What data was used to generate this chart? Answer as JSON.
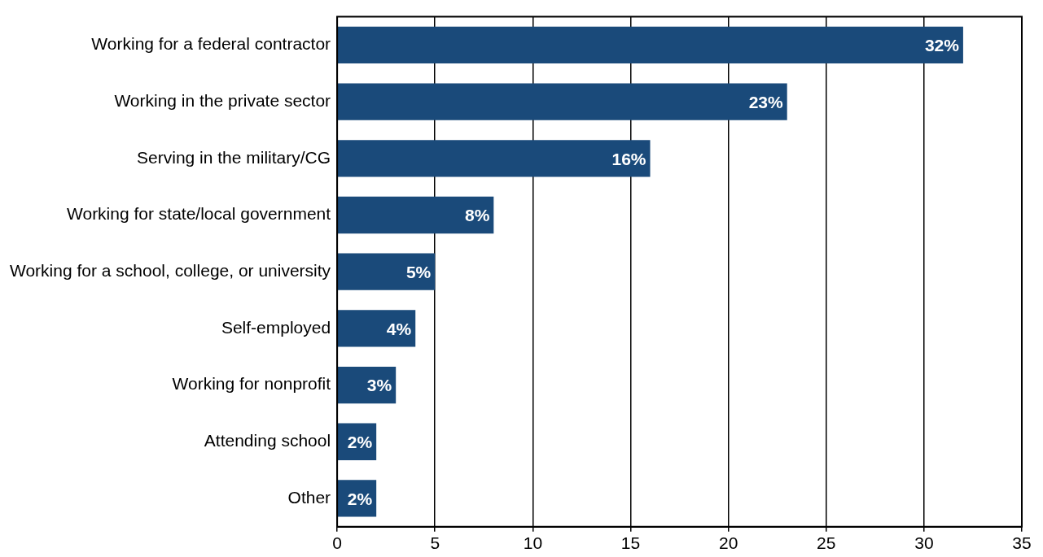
{
  "chart_data": {
    "type": "bar",
    "orientation": "horizontal",
    "categories": [
      "Working for a federal contractor",
      "Working in the private sector",
      "Serving in the military/CG",
      "Working for state/local government",
      "Working for a school, college, or university",
      "Self-employed",
      "Working for nonprofit",
      "Attending school",
      "Other"
    ],
    "values": [
      32,
      23,
      16,
      8,
      5,
      4,
      3,
      2,
      2
    ],
    "value_labels": [
      "32%",
      "23%",
      "16%",
      "8%",
      "5%",
      "4%",
      "3%",
      "2%",
      "2%"
    ],
    "color": "#1a4a7a",
    "xlim": [
      0,
      35
    ],
    "xticks": [
      0,
      5,
      10,
      15,
      20,
      25,
      30,
      35
    ],
    "grid": "x",
    "legend": false
  }
}
